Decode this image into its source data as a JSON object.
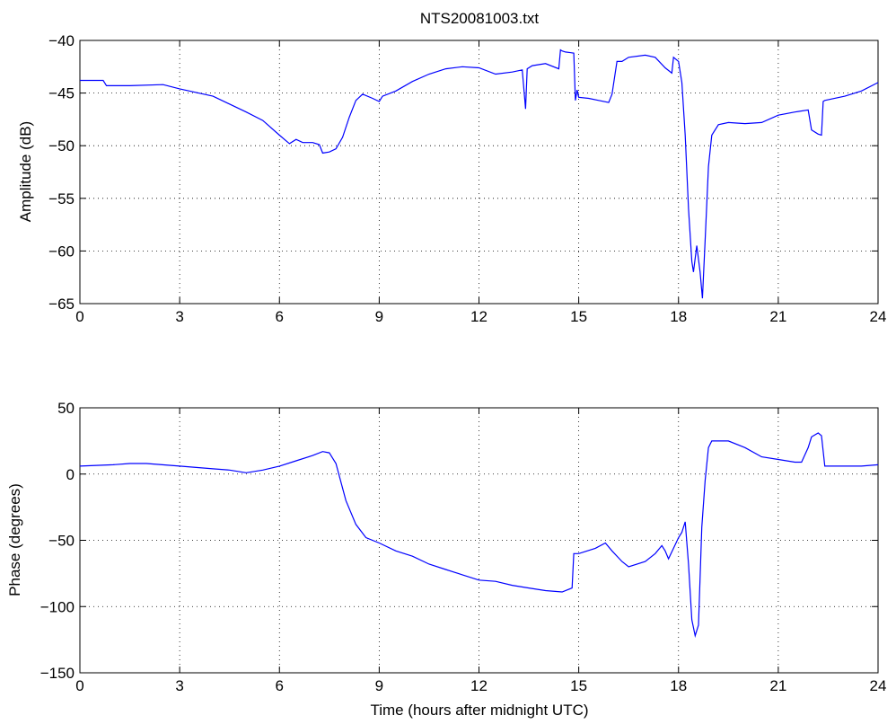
{
  "chart_data": [
    {
      "type": "line",
      "title": "NTS20081003.txt",
      "xlabel": "",
      "ylabel": "Amplitude (dB)",
      "xlim": [
        0,
        24
      ],
      "ylim": [
        -65,
        -40
      ],
      "xticks": [
        0,
        3,
        6,
        9,
        12,
        15,
        18,
        21,
        24
      ],
      "yticks": [
        -40,
        -45,
        -50,
        -55,
        -60,
        -65
      ],
      "grid": true,
      "line_color": "#0000ff",
      "series": [
        {
          "x": [
            0,
            0.7,
            0.8,
            1.5,
            2.5,
            3.0,
            4.0,
            5.0,
            5.5,
            6.0,
            6.3,
            6.5,
            6.7,
            7.0,
            7.2,
            7.3,
            7.5,
            7.7,
            7.9,
            8.1,
            8.3,
            8.5,
            8.8,
            9.0,
            9.1,
            9.5,
            10.0,
            10.5,
            11.0,
            11.5,
            12.0,
            12.5,
            13.0,
            13.3,
            13.4,
            13.45,
            13.6,
            14.0,
            14.4,
            14.45,
            14.5,
            14.6,
            14.85,
            14.9,
            14.95,
            15.0,
            15.3,
            15.6,
            15.9,
            16.0,
            16.15,
            16.3,
            16.5,
            17.0,
            17.3,
            17.6,
            17.8,
            17.85,
            18.0,
            18.1,
            18.2,
            18.3,
            18.4,
            18.45,
            18.55,
            18.65,
            18.72,
            18.8,
            18.9,
            19.0,
            19.2,
            19.5,
            20.0,
            20.5,
            21.0,
            21.5,
            21.9,
            22.0,
            22.2,
            22.3,
            22.35,
            22.4,
            23.0,
            23.5,
            24.0
          ],
          "y": [
            -43.8,
            -43.8,
            -44.3,
            -44.3,
            -44.2,
            -44.6,
            -45.3,
            -46.8,
            -47.6,
            -49.0,
            -49.8,
            -49.4,
            -49.7,
            -49.7,
            -49.9,
            -50.7,
            -50.6,
            -50.3,
            -49.2,
            -47.3,
            -45.7,
            -45.1,
            -45.5,
            -45.8,
            -45.3,
            -44.8,
            -43.9,
            -43.2,
            -42.7,
            -42.5,
            -42.6,
            -43.2,
            -43.0,
            -42.8,
            -46.5,
            -42.7,
            -42.4,
            -42.2,
            -42.7,
            -40.9,
            -41.0,
            -41.1,
            -41.2,
            -45.7,
            -44.7,
            -45.4,
            -45.5,
            -45.7,
            -45.9,
            -45.1,
            -42.0,
            -42.0,
            -41.6,
            -41.4,
            -41.6,
            -42.6,
            -43.1,
            -41.6,
            -42.0,
            -44.0,
            -49.0,
            -56.0,
            -61.0,
            -62.0,
            -59.5,
            -62.0,
            -64.5,
            -59.0,
            -52.0,
            -49.0,
            -48.0,
            -47.8,
            -47.9,
            -47.8,
            -47.1,
            -46.8,
            -46.6,
            -48.5,
            -48.9,
            -49.0,
            -45.8,
            -45.7,
            -45.3,
            -44.8,
            -44.0
          ]
        }
      ]
    },
    {
      "type": "line",
      "title": "",
      "xlabel": "Time (hours after midnight UTC)",
      "ylabel": "Phase (degrees)",
      "xlim": [
        0,
        24
      ],
      "ylim": [
        -150,
        50
      ],
      "xticks": [
        0,
        3,
        6,
        9,
        12,
        15,
        18,
        21,
        24
      ],
      "yticks": [
        50,
        0,
        -50,
        -100,
        -150
      ],
      "grid": true,
      "line_color": "#0000ff",
      "series": [
        {
          "x": [
            0,
            1.0,
            1.5,
            2.0,
            3.0,
            3.5,
            4.0,
            4.5,
            5.0,
            5.5,
            6.0,
            6.5,
            7.0,
            7.3,
            7.5,
            7.7,
            8.0,
            8.3,
            8.6,
            9.0,
            9.5,
            10.0,
            10.5,
            11.0,
            11.5,
            12.0,
            12.5,
            13.0,
            13.5,
            14.0,
            14.5,
            14.8,
            14.85,
            15.0,
            15.5,
            15.8,
            16.0,
            16.3,
            16.5,
            17.0,
            17.3,
            17.5,
            17.6,
            17.7,
            18.0,
            18.1,
            18.2,
            18.3,
            18.4,
            18.5,
            18.6,
            18.7,
            18.8,
            18.9,
            19.0,
            19.5,
            20.0,
            20.5,
            21.0,
            21.5,
            21.7,
            21.9,
            22.0,
            22.2,
            22.3,
            22.4,
            23.0,
            23.5,
            24.0
          ],
          "y": [
            6,
            7,
            8,
            8,
            6,
            5,
            4,
            3,
            1,
            3,
            6,
            10,
            14,
            17,
            16,
            8,
            -20,
            -38,
            -48,
            -52,
            -58,
            -62,
            -68,
            -72,
            -76,
            -80,
            -81,
            -84,
            -86,
            -88,
            -89,
            -86,
            -60,
            -60,
            -56,
            -52,
            -58,
            -66,
            -70,
            -66,
            -60,
            -54,
            -58,
            -64,
            -48,
            -44,
            -36,
            -68,
            -110,
            -122,
            -114,
            -40,
            -5,
            20,
            25,
            25,
            20,
            13,
            11,
            9,
            9,
            20,
            28,
            31,
            29,
            6,
            6,
            6,
            7
          ]
        }
      ]
    }
  ]
}
